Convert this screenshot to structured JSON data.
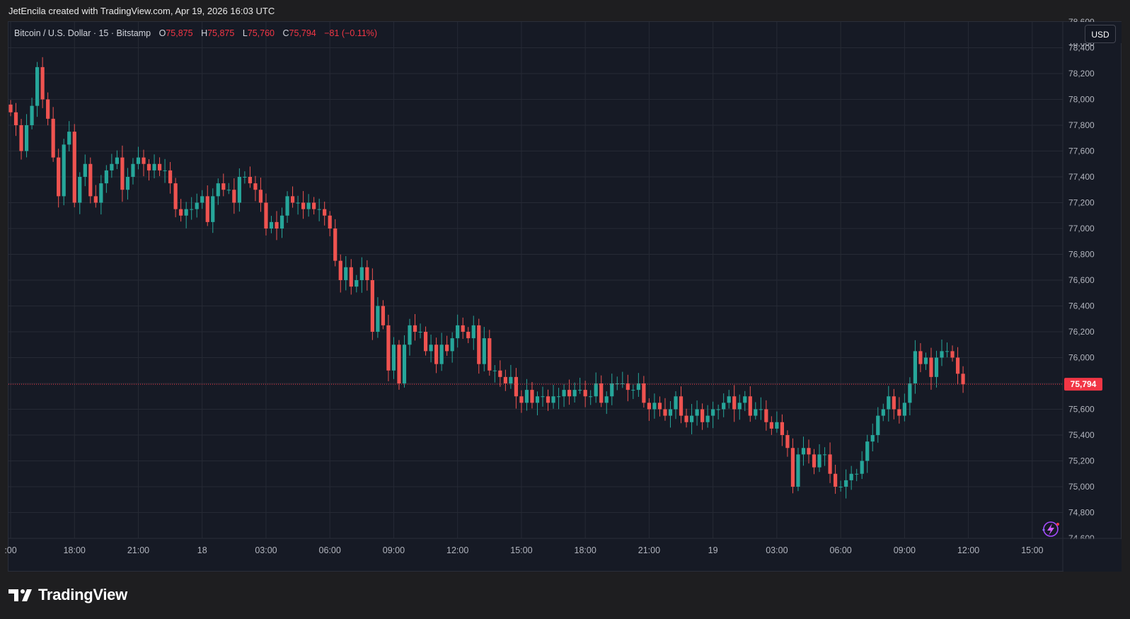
{
  "attribution": "JetEncila created with TradingView.com, Apr 19, 2026 16:03 UTC",
  "legend": {
    "symbol": "Bitcoin / U.S. Dollar · 15 · Bitstamp",
    "o_label": "O",
    "o_value": "75,875",
    "h_label": "H",
    "h_value": "75,875",
    "l_label": "L",
    "l_value": "75,760",
    "c_label": "C",
    "c_value": "75,794",
    "change": "−81 (−0.11%)"
  },
  "currency_button": "USD",
  "footer_brand": "TradingView",
  "colors": {
    "up": "#26a69a",
    "down": "#ef5350",
    "background": "#161a25",
    "grid": "#262a35",
    "axis_text": "#b2b5be",
    "price_tag": "#f23645"
  },
  "icons": [
    "tradingview-logo-icon",
    "lightning-magic-icon"
  ],
  "chart_data": {
    "type": "candlestick",
    "title": "Bitcoin / U.S. Dollar · 15 · Bitstamp",
    "timeframe": "15m",
    "currency": "USD",
    "last_price": 75794,
    "last_price_label": "75,794",
    "ylim": [
      74600,
      78600
    ],
    "y_ticks": [
      74800,
      75000,
      75200,
      75400,
      75600,
      75800,
      76000,
      76200,
      76400,
      76600,
      76800,
      77000,
      77200,
      77400,
      77600,
      77800,
      78000,
      78200,
      78400
    ],
    "y_tick_labels": [
      "74,800",
      "75,000",
      "75,200",
      "75,400",
      "75,600",
      "75,800",
      "76,000",
      "76,200",
      "76,400",
      "76,600",
      "76,800",
      "77,000",
      "77,200",
      "77,400",
      "77,600",
      "77,800",
      "78,000",
      "78,200",
      "78,400"
    ],
    "y_partial_top_label": "78,600",
    "y_partial_bottom_label": "74,600",
    "x_tick_labels": [
      {
        "text": ":00",
        "bar": 0
      },
      {
        "text": "18:00",
        "bar": 12
      },
      {
        "text": "21:00",
        "bar": 24
      },
      {
        "text": "18",
        "bar": 36
      },
      {
        "text": "03:00",
        "bar": 48
      },
      {
        "text": "06:00",
        "bar": 60
      },
      {
        "text": "09:00",
        "bar": 72
      },
      {
        "text": "12:00",
        "bar": 84
      },
      {
        "text": "15:00",
        "bar": 96
      },
      {
        "text": "18:00",
        "bar": 108
      },
      {
        "text": "21:00",
        "bar": 120
      },
      {
        "text": "19",
        "bar": 132
      },
      {
        "text": "03:00",
        "bar": 144
      },
      {
        "text": "06:00",
        "bar": 156
      },
      {
        "text": "09:00",
        "bar": 168
      },
      {
        "text": "12:00",
        "bar": 180
      },
      {
        "text": "15:00",
        "bar": 192
      }
    ],
    "closes": [
      77900,
      77800,
      77600,
      77800,
      77950,
      78250,
      78000,
      77850,
      77550,
      77250,
      77650,
      77750,
      77200,
      77400,
      77500,
      77250,
      77200,
      77350,
      77450,
      77500,
      77550,
      77300,
      77400,
      77500,
      77550,
      77500,
      77450,
      77500,
      77450,
      77450,
      77350,
      77150,
      77100,
      77150,
      77150,
      77200,
      77250,
      77050,
      77250,
      77350,
      77300,
      77300,
      77200,
      77400,
      77400,
      77350,
      77300,
      77200,
      77000,
      77050,
      77000,
      77100,
      77250,
      77200,
      77200,
      77150,
      77200,
      77150,
      77150,
      77100,
      77000,
      76750,
      76600,
      76700,
      76550,
      76600,
      76700,
      76600,
      76200,
      76400,
      76250,
      75900,
      76100,
      75800,
      76100,
      76250,
      76200,
      76200,
      76050,
      76100,
      75950,
      76100,
      76050,
      76150,
      76250,
      76200,
      76150,
      76250,
      75950,
      76150,
      75900,
      75900,
      75850,
      75800,
      75850,
      75700,
      75650,
      75750,
      75650,
      75700,
      75700,
      75650,
      75700,
      75700,
      75750,
      75700,
      75750,
      75750,
      75700,
      75700,
      75800,
      75650,
      75700,
      75800,
      75800,
      75800,
      75750,
      75750,
      75800,
      75650,
      75600,
      75650,
      75600,
      75550,
      75600,
      75700,
      75550,
      75500,
      75550,
      75600,
      75500,
      75550,
      75600,
      75600,
      75650,
      75700,
      75600,
      75650,
      75700,
      75550,
      75600,
      75600,
      75500,
      75450,
      75500,
      75400,
      75300,
      75000,
      75250,
      75300,
      75250,
      75150,
      75250,
      75250,
      75100,
      75000,
      75000,
      75050,
      75100,
      75100,
      75200,
      75350,
      75400,
      75550,
      75600,
      75700,
      75600,
      75550,
      75650,
      75800,
      76050,
      75950,
      76000,
      75850,
      76000,
      76050,
      76050,
      76000,
      75875,
      75794
    ]
  }
}
